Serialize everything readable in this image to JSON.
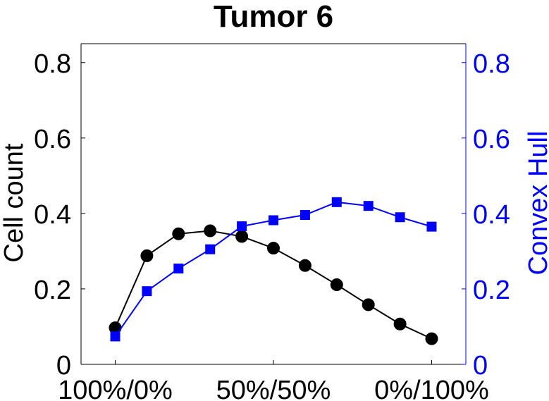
{
  "chart_data": {
    "type": "line",
    "title": "Tumor 6",
    "xlabel": "",
    "categories": [
      "100%/0%",
      "",
      "",
      "",
      "",
      "50%/50%",
      "",
      "",
      "",
      "",
      "0%/100%"
    ],
    "xtick_labels": [
      "100%/0%",
      "50%/50%",
      "0%/100%"
    ],
    "grid": false,
    "y_left": {
      "label": "Cell count",
      "lim": [
        0,
        0.85
      ],
      "ticks": [
        "0",
        "0.2",
        "0.4",
        "0.6",
        "0.8"
      ],
      "color": "#000000"
    },
    "y_right": {
      "label": "Convex Hull",
      "lim": [
        0,
        0.85
      ],
      "ticks": [
        "0",
        "0.2",
        "0.4",
        "0.6",
        "0.8"
      ],
      "color": "#0000ff"
    },
    "series": [
      {
        "axis": "left",
        "marker": "circle",
        "color": "#000000",
        "values": [
          0.097,
          0.288,
          0.346,
          0.354,
          0.339,
          0.308,
          0.262,
          0.211,
          0.158,
          0.107,
          0.068
        ]
      },
      {
        "axis": "right",
        "marker": "square",
        "color": "#0000ff",
        "values": [
          0.074,
          0.194,
          0.254,
          0.305,
          0.366,
          0.382,
          0.396,
          0.43,
          0.42,
          0.39,
          0.365
        ]
      }
    ]
  }
}
